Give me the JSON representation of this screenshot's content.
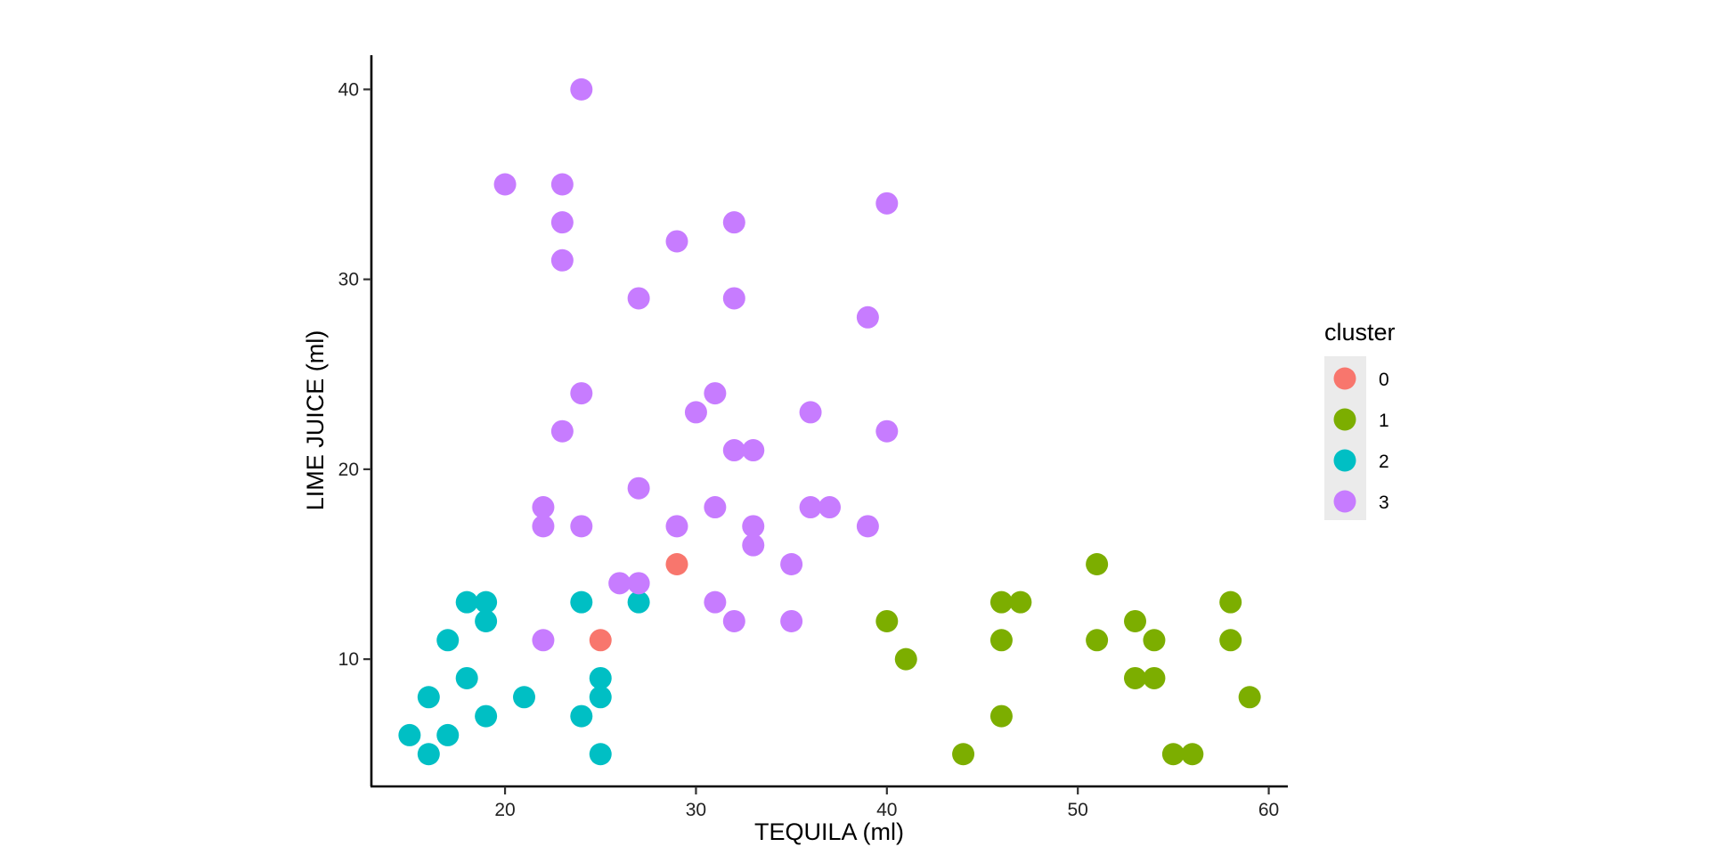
{
  "chart_data": {
    "type": "scatter",
    "title": "",
    "xlabel": "TEQUILA (ml)",
    "ylabel": "LIME JUICE (ml)",
    "xlim": [
      13,
      61
    ],
    "ylim": [
      3.3,
      41.8
    ],
    "xticks": [
      20,
      30,
      40,
      50,
      60
    ],
    "yticks": [
      10,
      20,
      30,
      40
    ],
    "grid": false,
    "legend": {
      "title": "cluster",
      "placement": "right"
    },
    "series": [
      {
        "name": "0",
        "color": "#F8766D",
        "points": [
          [
            29,
            15
          ],
          [
            25,
            11
          ]
        ]
      },
      {
        "name": "1",
        "color": "#7CAE00",
        "points": [
          [
            40,
            12
          ],
          [
            41,
            10
          ],
          [
            44,
            5
          ],
          [
            46,
            13
          ],
          [
            46,
            11
          ],
          [
            46,
            7
          ],
          [
            47,
            13
          ],
          [
            51,
            15
          ],
          [
            51,
            11
          ],
          [
            53,
            12
          ],
          [
            53,
            9
          ],
          [
            54,
            11
          ],
          [
            54,
            9
          ],
          [
            55,
            5
          ],
          [
            56,
            5
          ],
          [
            58,
            13
          ],
          [
            58,
            11
          ],
          [
            59,
            8
          ]
        ]
      },
      {
        "name": "2",
        "color": "#00BFC4",
        "points": [
          [
            15,
            6
          ],
          [
            16,
            8
          ],
          [
            16,
            5
          ],
          [
            17,
            11
          ],
          [
            17,
            6
          ],
          [
            18,
            13
          ],
          [
            18,
            9
          ],
          [
            19,
            13
          ],
          [
            19,
            12
          ],
          [
            19,
            7
          ],
          [
            21,
            8
          ],
          [
            24,
            13
          ],
          [
            24,
            7
          ],
          [
            25,
            9
          ],
          [
            25,
            8
          ],
          [
            25,
            5
          ],
          [
            27,
            13
          ]
        ]
      },
      {
        "name": "3",
        "color": "#C77CFF",
        "points": [
          [
            20,
            35
          ],
          [
            22,
            18
          ],
          [
            22,
            17
          ],
          [
            22,
            11
          ],
          [
            23,
            35
          ],
          [
            23,
            33
          ],
          [
            23,
            31
          ],
          [
            23,
            22
          ],
          [
            24,
            40
          ],
          [
            24,
            24
          ],
          [
            24,
            17
          ],
          [
            26,
            14
          ],
          [
            27,
            29
          ],
          [
            27,
            19
          ],
          [
            27,
            14
          ],
          [
            29,
            32
          ],
          [
            29,
            17
          ],
          [
            30,
            23
          ],
          [
            31,
            24
          ],
          [
            31,
            18
          ],
          [
            31,
            13
          ],
          [
            32,
            33
          ],
          [
            32,
            29
          ],
          [
            32,
            21
          ],
          [
            32,
            12
          ],
          [
            33,
            21
          ],
          [
            33,
            17
          ],
          [
            33,
            16
          ],
          [
            35,
            15
          ],
          [
            35,
            12
          ],
          [
            36,
            23
          ],
          [
            36,
            18
          ],
          [
            37,
            18
          ],
          [
            39,
            28
          ],
          [
            39,
            17
          ],
          [
            40,
            34
          ],
          [
            40,
            22
          ]
        ]
      }
    ]
  }
}
